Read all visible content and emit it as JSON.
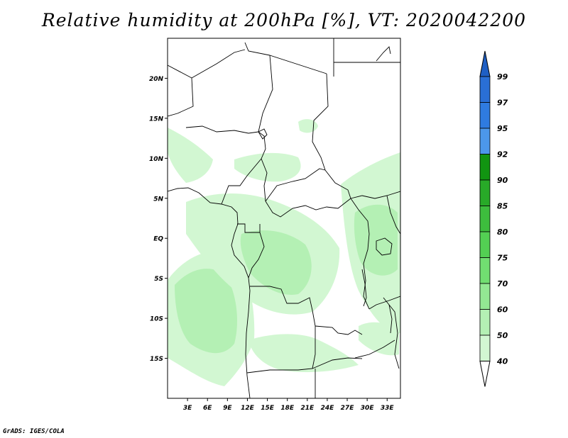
{
  "title": "Relative humidity at 200hPa [%], VT: 2020042200",
  "credit": "GrADS: IGES/COLA",
  "map": {
    "lat_labels": [
      "20N",
      "15N",
      "10N",
      "5N",
      "EQ",
      "5S",
      "10S",
      "15S"
    ],
    "lat_values": [
      20,
      15,
      10,
      5,
      0,
      -5,
      -10,
      -15
    ],
    "lon_labels": [
      "3E",
      "6E",
      "9E",
      "12E",
      "15E",
      "18E",
      "21E",
      "24E",
      "27E",
      "30E",
      "33E"
    ],
    "lon_values": [
      3,
      6,
      9,
      12,
      15,
      18,
      21,
      24,
      27,
      30,
      33
    ],
    "lon_range": [
      0,
      35
    ],
    "lat_range": [
      -20,
      25
    ]
  },
  "colorbar": {
    "levels": [
      "99",
      "97",
      "95",
      "92",
      "90",
      "85",
      "80",
      "75",
      "70",
      "60",
      "50",
      "40"
    ],
    "colors": [
      "#2a6fd6",
      "#2f7be0",
      "#4c97ea",
      "#119411",
      "#28aa28",
      "#3dbd3d",
      "#53cf53",
      "#71de71",
      "#93e893",
      "#b4f0b4",
      "#d2f7d2",
      "#ecfcec"
    ],
    "arrow_top_color": "#1f5fc4",
    "arrow_bottom_color": "#ffffff"
  }
}
